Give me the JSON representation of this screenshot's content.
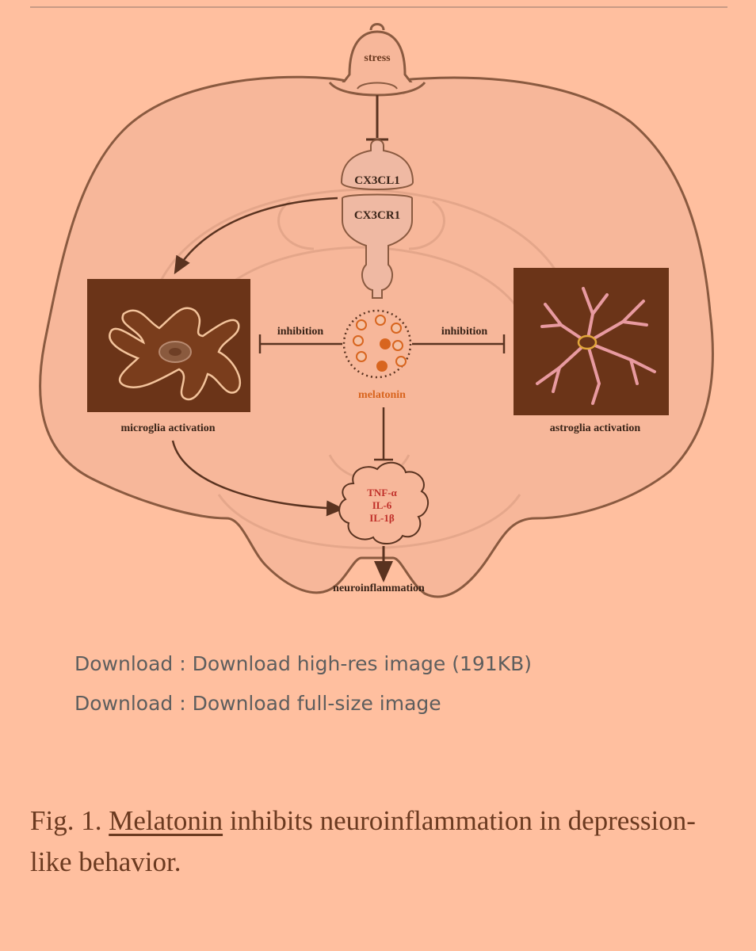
{
  "figure": {
    "labels": {
      "stress": "stress",
      "ligand": "CX3CL1",
      "receptor": "CX3CR1",
      "inhibition_left": "inhibition",
      "inhibition_right": "inhibition",
      "melatonin": "melatonin",
      "microglia": "microglia activation",
      "astroglia": "astroglia activation",
      "cytokine_1": "TNF-α",
      "cytokine_2": "IL-6",
      "cytokine_3": "IL-1β",
      "outcome": "neuroinflammation"
    },
    "colors": {
      "background": "#ffbf9f",
      "brain_fill": "#f7b79a",
      "outline": "#8a5a40",
      "cell_box": "#6b3418",
      "microglia_fill": "#7a3d1c",
      "astroglia_stroke": "#e89aa0",
      "melatonin_orange": "#d8651f",
      "cytokine_red": "#c0302a"
    }
  },
  "downloads": {
    "prefix": "Download : ",
    "highres": "Download high-res image (191KB)",
    "fullsize": "Download full-size image"
  },
  "caption": {
    "label": "Fig. 1. ",
    "link": "Melatonin",
    "text": " inhibits neuroinflammation in depression-like behavior."
  }
}
